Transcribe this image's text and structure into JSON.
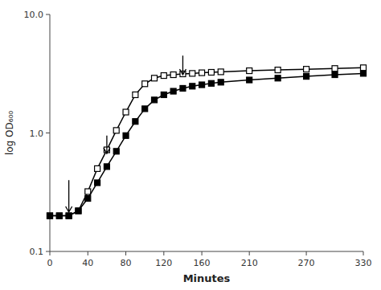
{
  "chart_data": {
    "type": "line",
    "x": [
      0,
      10,
      20,
      30,
      40,
      50,
      60,
      70,
      80,
      90,
      100,
      110,
      120,
      130,
      140,
      150,
      160,
      170,
      180,
      210,
      240,
      270,
      300,
      330
    ],
    "series": [
      {
        "color": "#000000",
        "marker": "square-open",
        "line_style": "solid",
        "values": [
          0.2,
          0.2,
          0.2,
          0.22,
          0.32,
          0.5,
          0.72,
          1.05,
          1.5,
          2.1,
          2.6,
          2.9,
          3.05,
          3.1,
          3.15,
          3.18,
          3.22,
          3.25,
          3.28,
          3.35,
          3.4,
          3.45,
          3.5,
          3.55
        ]
      },
      {
        "color": "#000000",
        "marker": "square",
        "line_style": "solid",
        "values": [
          0.2,
          0.2,
          0.2,
          0.22,
          0.28,
          0.38,
          0.52,
          0.7,
          0.95,
          1.25,
          1.6,
          1.9,
          2.1,
          2.25,
          2.38,
          2.48,
          2.55,
          2.62,
          2.68,
          2.8,
          2.9,
          3.0,
          3.1,
          3.18
        ]
      }
    ],
    "arrows": [
      {
        "x": 20,
        "y_tip": 0.215,
        "y_tail": 0.4
      },
      {
        "x": 60,
        "y_tip": 0.67,
        "y_tail": 0.95
      },
      {
        "x": 140,
        "y_tip": 3.1,
        "y_tail": 4.5
      }
    ],
    "xlabel": "Minutes",
    "ylabel": "log OD₆₀₀",
    "log": "y",
    "grid": false,
    "xlim": [
      0,
      330
    ],
    "ylim": [
      0.1,
      10.0
    ],
    "xticks": [
      0,
      40,
      80,
      120,
      160,
      210,
      270,
      330
    ],
    "yticks": [
      0.1,
      {
        "value": 1.0,
        "label": "1.0"
      },
      {
        "value": 10.0,
        "label": "10.0"
      }
    ]
  }
}
